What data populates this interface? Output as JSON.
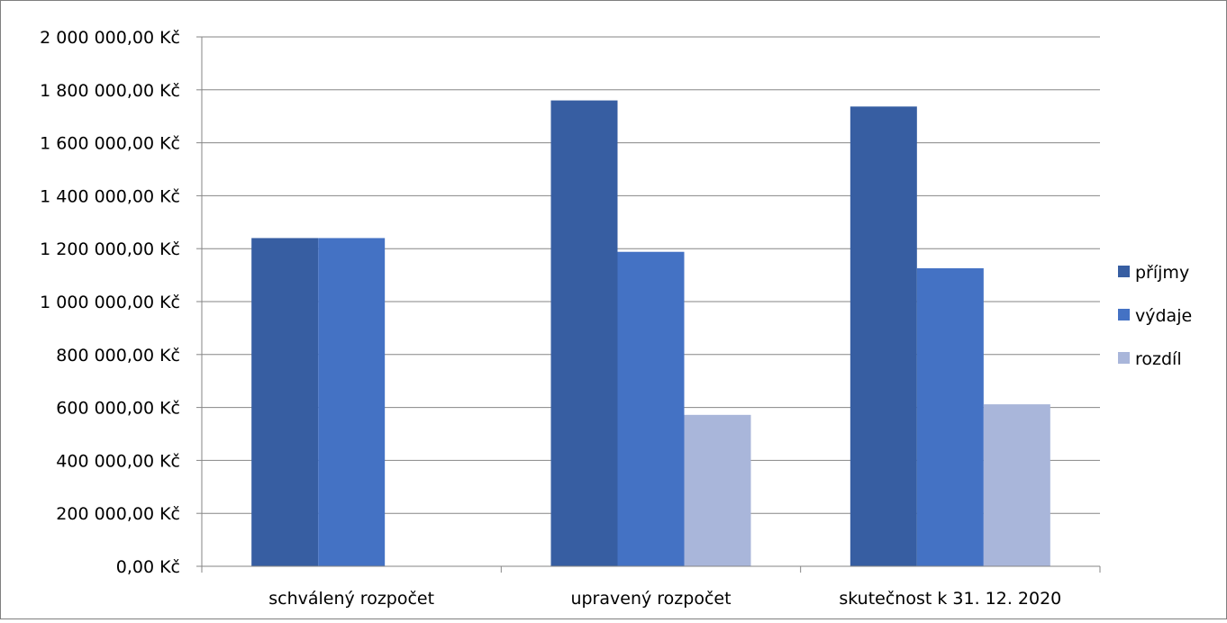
{
  "chart_data": {
    "type": "bar",
    "title": "",
    "xlabel": "",
    "ylabel": "",
    "categories": [
      "schválený rozpočet",
      "upravený rozpočet",
      "skutečnost k 31. 12. 2020"
    ],
    "series": [
      {
        "name": "příjmy",
        "color": "#375EA2",
        "values": [
          1240000,
          1760000,
          1737000
        ]
      },
      {
        "name": "výdaje",
        "color": "#4472C4",
        "values": [
          1240000,
          1188000,
          1126000
        ]
      },
      {
        "name": "rozdíl",
        "color": "#A9B6DA",
        "values": [
          0,
          572000,
          612000
        ]
      }
    ],
    "ylim": [
      0,
      2000000
    ],
    "yticks": [
      0,
      200000,
      400000,
      600000,
      800000,
      1000000,
      1200000,
      1400000,
      1600000,
      1800000,
      2000000
    ],
    "ytick_labels": [
      "0,00 Kč",
      "200 000,00 Kč",
      "400 000,00 Kč",
      "600 000,00 Kč",
      "800 000,00 Kč",
      "1 000 000,00 Kč",
      "1 200 000,00 Kč",
      "1 400 000,00 Kč",
      "1 600 000,00 Kč",
      "1 800 000,00 Kč",
      "2 000 000,00 Kč"
    ],
    "grid": true,
    "legend_position": "right"
  }
}
